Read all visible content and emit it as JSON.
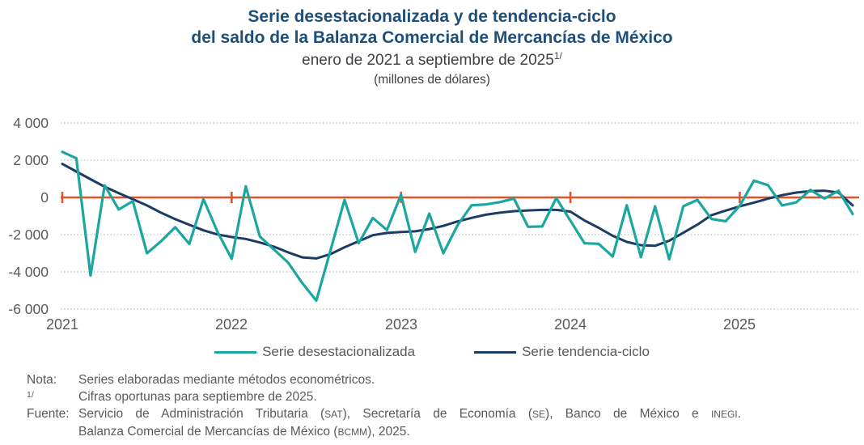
{
  "title": {
    "line1": "Serie desestacionalizada y de tendencia-ciclo",
    "line2": "del saldo de la Balanza Comercial de Mercancías de México",
    "subtitle": "enero de 2021 a septiembre de 2025",
    "subtitle_sup": "1/",
    "units": "(millones de dólares)"
  },
  "chart_data": {
    "type": "line",
    "title": "Serie desestacionalizada y de tendencia-ciclo del saldo de la Balanza Comercial de Mercancías de México",
    "x_unit": "month",
    "x_start": "2021-01",
    "x_end": "2025-09",
    "ylim": [
      -6000,
      4000
    ],
    "grid": "dotted-horizontal",
    "legend_position": "bottom",
    "gridline_color": "#B0B0B2",
    "y_ticks": [
      {
        "value": 4000,
        "label": "4 000"
      },
      {
        "value": 2000,
        "label": "2 000"
      },
      {
        "value": 0,
        "label": "0"
      },
      {
        "value": -2000,
        "label": "-2 000"
      },
      {
        "value": -4000,
        "label": "-4 000"
      },
      {
        "value": -6000,
        "label": "-6 000"
      }
    ],
    "x_ticks": [
      {
        "month_index": 0,
        "label": "2021"
      },
      {
        "month_index": 12,
        "label": "2022"
      },
      {
        "month_index": 24,
        "label": "2023"
      },
      {
        "month_index": 36,
        "label": "2024"
      },
      {
        "month_index": 48,
        "label": "2025"
      }
    ],
    "zero_line": {
      "color": "#E4512B",
      "tick_month_indices": [
        0,
        12,
        24,
        36,
        48
      ]
    },
    "series": [
      {
        "name": "Serie desestacionalizada",
        "color": "#1BA7A0",
        "values": [
          2450,
          2100,
          -4200,
          650,
          -650,
          -200,
          -3000,
          -2350,
          -1600,
          -2500,
          -90,
          -1850,
          -3300,
          600,
          -2100,
          -2800,
          -3500,
          -4600,
          -5550,
          -2850,
          -130,
          -2460,
          -1100,
          -1750,
          150,
          -2930,
          -870,
          -3000,
          -1500,
          -420,
          -380,
          -250,
          -60,
          -1580,
          -1560,
          -30,
          -1250,
          -2460,
          -2490,
          -3180,
          -420,
          -3210,
          -480,
          -3330,
          -480,
          -130,
          -1160,
          -1280,
          -450,
          900,
          660,
          -430,
          -270,
          400,
          -60,
          360,
          -890
        ]
      },
      {
        "name": "Serie tendencia-ciclo",
        "color": "#1C3C64",
        "values": [
          1800,
          1390,
          980,
          580,
          230,
          -100,
          -430,
          -820,
          -1170,
          -1470,
          -1770,
          -1990,
          -2130,
          -2230,
          -2420,
          -2650,
          -2950,
          -3220,
          -3280,
          -3050,
          -2680,
          -2350,
          -2030,
          -1910,
          -1860,
          -1820,
          -1700,
          -1530,
          -1290,
          -1100,
          -930,
          -820,
          -740,
          -700,
          -670,
          -670,
          -760,
          -1240,
          -1630,
          -2060,
          -2390,
          -2570,
          -2600,
          -2330,
          -1900,
          -1460,
          -950,
          -710,
          -480,
          -280,
          -70,
          120,
          260,
          340,
          360,
          260,
          -430
        ]
      }
    ]
  },
  "footnotes": {
    "nota_label": "Nota:",
    "nota_text": "Series elaboradas mediante métodos econométricos.",
    "fn1_label": "1/",
    "fn1_text": "Cifras oportunas para septiembre de 2025.",
    "fuente_label": "Fuente:",
    "fuente_line1": "Servicio de Administración Tributaria (SAT), Secretaría de Economía (SE), Banco de México e INEGI.",
    "fuente_line2": "Balanza Comercial de Mercancías de México (BCMM), 2025."
  },
  "colors": {
    "title_blue": "#1F4E79",
    "text_gray": "#58595B",
    "subtitle_gray": "#414042"
  }
}
